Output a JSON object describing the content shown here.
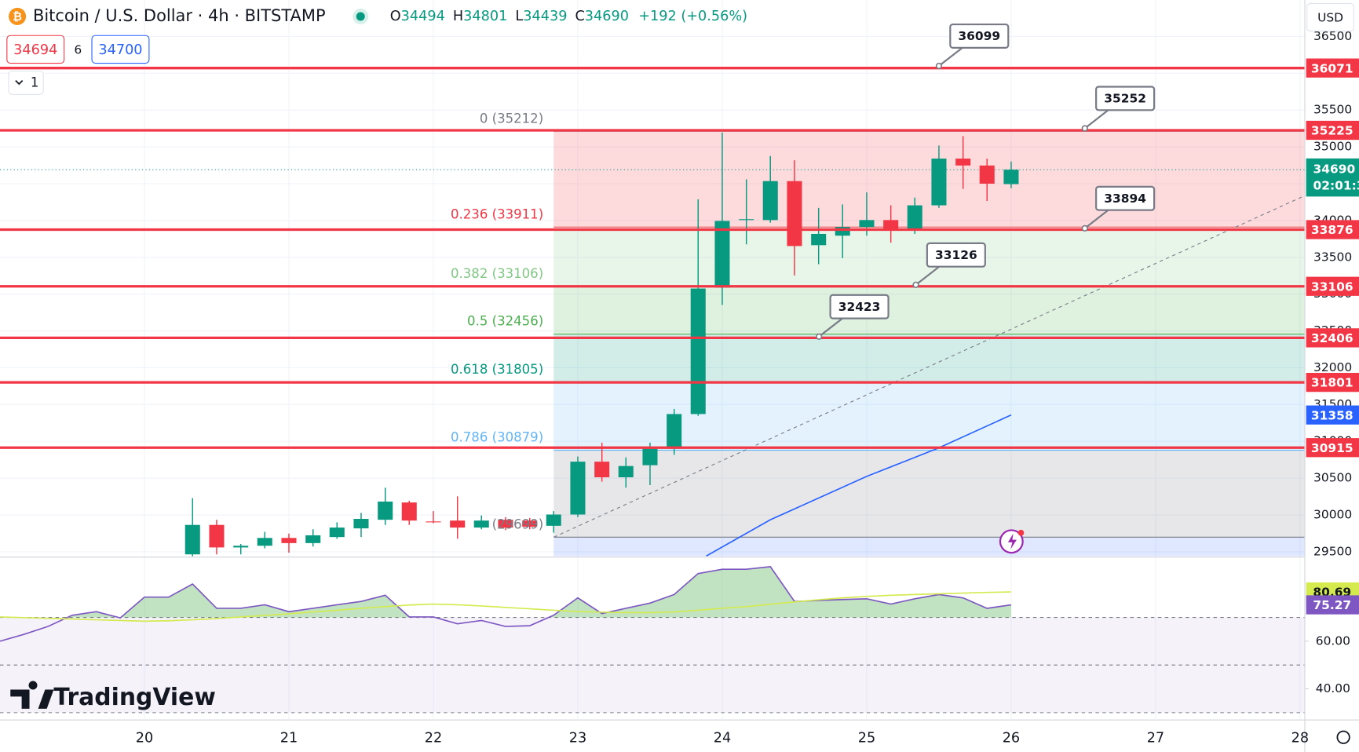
{
  "header": {
    "symbol": "Bitcoin / U.S. Dollar · 4h · BITSTAMP",
    "ohlc": [
      {
        "label": "O",
        "value": 34494
      },
      {
        "label": "H",
        "value": 34801
      },
      {
        "label": "L",
        "value": 34439
      },
      {
        "label": "C",
        "value": 34690
      }
    ],
    "change": "+192 (+0.56%)",
    "bid": 34694,
    "spread": 6,
    "ask": 34700,
    "indicator_count": 1,
    "currency": "USD",
    "logo": "TradingView"
  },
  "chart_data": [
    {
      "type": "candlestick",
      "up_color": "#089981",
      "down_color": "#f23645",
      "xlim": [
        19,
        28.03
      ],
      "xticks": [
        20,
        21,
        22,
        23,
        24,
        25,
        26,
        27,
        28
      ],
      "ylim": [
        29440,
        36995
      ],
      "yticks": [
        29500,
        30000,
        30500,
        31000,
        31500,
        32000,
        32500,
        33000,
        33500,
        34000,
        34500,
        35000,
        35500,
        36000,
        36500
      ],
      "grid": true,
      "x": [
        20.333,
        20.5,
        20.667,
        20.833,
        21,
        21.167,
        21.333,
        21.5,
        21.667,
        21.833,
        22,
        22.167,
        22.333,
        22.5,
        22.667,
        22.833,
        23,
        23.167,
        23.333,
        23.5,
        23.667,
        23.833,
        24,
        24.167,
        24.333,
        24.5,
        24.667,
        24.833,
        25,
        25.167,
        25.333,
        25.5,
        25.667,
        25.833,
        26
      ],
      "open": [
        29465,
        29865,
        29559,
        29582,
        29688,
        29618,
        29700,
        29818,
        29935,
        30170,
        29912,
        29924,
        29829,
        29935,
        29924,
        29853,
        30006,
        30724,
        30512,
        30676,
        30900,
        31371,
        33088,
        34006,
        34006,
        34535,
        33665,
        33794,
        33912,
        34006,
        33876,
        34206,
        34841,
        34747,
        34494
      ],
      "high": [
        30229,
        29935,
        29606,
        29771,
        29747,
        29806,
        29900,
        30029,
        30371,
        30194,
        30053,
        30253,
        29994,
        29971,
        29959,
        30053,
        30794,
        30982,
        30782,
        30982,
        31441,
        34288,
        35194,
        34559,
        34876,
        34818,
        34171,
        34218,
        34382,
        34206,
        34312,
        35018,
        35147,
        34841,
        34801
      ],
      "low": [
        29405,
        29465,
        29465,
        29547,
        29488,
        29571,
        29676,
        29700,
        29865,
        29865,
        29888,
        29676,
        29806,
        29794,
        29806,
        29759,
        29971,
        30453,
        30371,
        30406,
        30818,
        31347,
        32853,
        33676,
        33971,
        33253,
        33406,
        33488,
        33794,
        33700,
        33818,
        34171,
        34429,
        34265,
        34439
      ],
      "close": [
        29865,
        29559,
        29582,
        29688,
        29618,
        29724,
        29829,
        29947,
        30182,
        29924,
        29910,
        29829,
        29924,
        29829,
        29841,
        30006,
        30724,
        30512,
        30665,
        30900,
        31371,
        33076,
        33994,
        34018,
        34535,
        33653,
        33818,
        33912,
        34006,
        33876,
        34206,
        34841,
        34747,
        34500,
        34690
      ],
      "fib_start": 22.833,
      "fib_levels": [
        {
          "label": "0 (35212)",
          "price": 35212,
          "color": "#787b86"
        },
        {
          "label": "0.236 (33911)",
          "price": 33911,
          "color": "#f23645"
        },
        {
          "label": "0.382 (33106)",
          "price": 33106,
          "color": "#81c784"
        },
        {
          "label": "0.5 (32456)",
          "price": 32456,
          "color": "#4caf50"
        },
        {
          "label": "0.618 (31805)",
          "price": 31805,
          "color": "#089981"
        },
        {
          "label": "0.786 (30879)",
          "price": 30879,
          "color": "#64b5f6"
        },
        {
          "label": "(29699)",
          "price": 29699,
          "color": "#787b86"
        }
      ],
      "price_lines": {
        "color": "#f23645",
        "values": [
          36071,
          35225,
          33876,
          33106,
          32406,
          31801,
          30915
        ]
      },
      "callouts": [
        {
          "value": 36099,
          "x": 25.5
        },
        {
          "value": 35252,
          "x": 26.51
        },
        {
          "value": 33894,
          "x": 26.51
        },
        {
          "value": 33126,
          "x": 25.34
        },
        {
          "value": 32423,
          "x": 24.67
        }
      ],
      "blue_line": {
        "color": "#2962ff",
        "x": [
          23.888,
          24.333,
          25,
          25.5,
          26
        ],
        "values": [
          29441,
          29935,
          30524,
          30912,
          31358
        ]
      },
      "last_price": {
        "value": 34690,
        "countdown": "02:01:3",
        "color": "#089981"
      }
    },
    {
      "type": "line",
      "xlim": [
        19,
        28.03
      ],
      "ylim": [
        27.3,
        94.6
      ],
      "yticks": [
        {
          "value": 40,
          "label": "40.00"
        },
        {
          "value": 60,
          "label": "60.00"
        }
      ],
      "band_lines": [
        70,
        50,
        30
      ],
      "x": [
        19,
        19.167,
        19.333,
        19.5,
        19.667,
        19.833,
        20,
        20.167,
        20.333,
        20.5,
        20.667,
        20.833,
        21,
        21.167,
        21.333,
        21.5,
        21.667,
        21.833,
        22,
        22.167,
        22.333,
        22.5,
        22.667,
        22.833,
        23,
        23.167,
        23.333,
        23.5,
        23.667,
        23.833,
        24,
        24.167,
        24.333,
        24.5,
        24.667,
        24.833,
        25,
        25.167,
        25.333,
        25.5,
        25.667,
        25.833,
        26
      ],
      "series": [
        {
          "color": "#7e57c2",
          "values": [
            60.0,
            62.9,
            66.2,
            70.9,
            72.4,
            69.8,
            78.5,
            78.5,
            84.0,
            73.8,
            73.8,
            75.3,
            72.4,
            73.8,
            75.3,
            76.7,
            79.3,
            70.2,
            70.2,
            67.3,
            68.7,
            66.2,
            66.5,
            70.9,
            78.2,
            71.6,
            73.8,
            76.0,
            79.6,
            88.4,
            90.2,
            90.2,
            91.3,
            76.7,
            77.1,
            77.5,
            77.8,
            75.6,
            77.8,
            79.6,
            78.2,
            73.8,
            75.27
          ]
        },
        {
          "color": "#d4ea4e",
          "values": [
            70.2,
            69.9,
            69.6,
            69.3,
            69.0,
            68.7,
            68.4,
            68.6,
            69.0,
            69.5,
            70.2,
            70.8,
            71.5,
            72.3,
            73.0,
            73.8,
            74.5,
            75.2,
            75.6,
            75.3,
            74.8,
            74.2,
            73.6,
            73.0,
            72.5,
            72.2,
            72.0,
            72.0,
            72.3,
            73.0,
            73.8,
            74.5,
            75.5,
            76.5,
            77.4,
            78.2,
            78.8,
            79.3,
            79.6,
            79.9,
            80.2,
            80.5,
            80.69
          ]
        }
      ]
    }
  ]
}
